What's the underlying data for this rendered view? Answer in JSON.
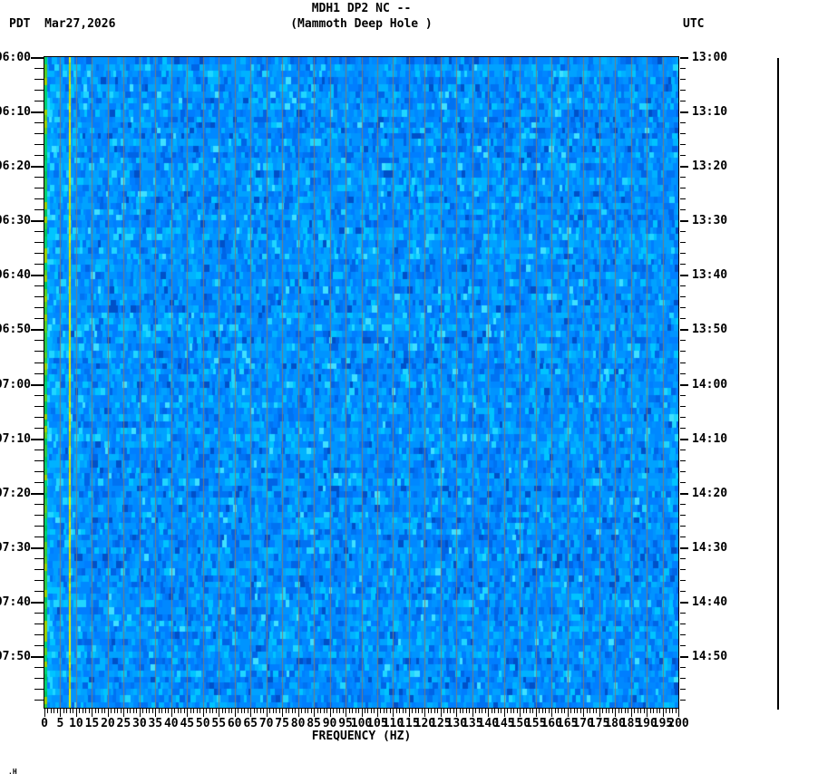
{
  "header": {
    "tz_left": "PDT",
    "date": "Mar27,2026",
    "title": "MDH1 DP2 NC --",
    "subtitle": "(Mammoth Deep Hole )",
    "tz_right": "UTC"
  },
  "chart_data": {
    "type": "heatmap",
    "subtype": "seismic-spectrogram",
    "title": "MDH1 DP2 NC --",
    "station_description": "Mammoth Deep Hole",
    "xlabel": "FREQUENCY (HZ)",
    "x_range_hz": [
      0,
      200
    ],
    "x_major_tick_hz": 5,
    "x_minor_tick_hz": 1,
    "x_tick_labels": [
      0,
      5,
      10,
      15,
      20,
      25,
      30,
      35,
      40,
      45,
      50,
      55,
      60,
      65,
      70,
      75,
      80,
      85,
      90,
      95,
      100,
      105,
      110,
      115,
      120,
      125,
      130,
      135,
      140,
      145,
      150,
      155,
      160,
      165,
      170,
      175,
      180,
      185,
      190,
      195,
      200
    ],
    "left_axis": {
      "timezone": "PDT",
      "tick_labels": [
        "06:00",
        "06:10",
        "06:20",
        "06:30",
        "06:40",
        "06:50",
        "07:00",
        "07:10",
        "07:20",
        "07:30",
        "07:40",
        "07:50"
      ],
      "major_tick_minutes": 10,
      "minor_tick_minutes": 2
    },
    "right_axis": {
      "timezone": "UTC",
      "tick_labels": [
        "13:00",
        "13:10",
        "13:20",
        "13:30",
        "13:40",
        "13:50",
        "14:00",
        "14:10",
        "14:20",
        "14:30",
        "14:40",
        "14:50"
      ],
      "major_tick_minutes": 10,
      "minor_tick_minutes": 2
    },
    "gridlines": {
      "vertical_every_hz": 5,
      "color": "#8b7a6b"
    },
    "features": [
      {
        "name": "low-frequency-edge-band",
        "freq_hz": [
          0,
          1
        ],
        "colors": [
          "#00c25a",
          "#2cc943",
          "#00cf70",
          "#55cc22",
          "#9acd00"
        ]
      },
      {
        "name": "persistent-spectral-line",
        "freq_hz": 8,
        "colors": [
          "#d6da00",
          "#e4e600",
          "#c4d300",
          "#eef000"
        ]
      }
    ],
    "noise_palette": [
      "#0050c8",
      "#0064e6",
      "#0072f2",
      "#007eff",
      "#0088ff",
      "#0094ff",
      "#00a2ff",
      "#00b2ff",
      "#00c4ff",
      "#20d6ff"
    ],
    "noise_highlight": "#40e0ff",
    "background_color": "#ffffff",
    "legend": "none",
    "grid_on": true
  },
  "footer": {
    "corner_mark": ".H"
  }
}
